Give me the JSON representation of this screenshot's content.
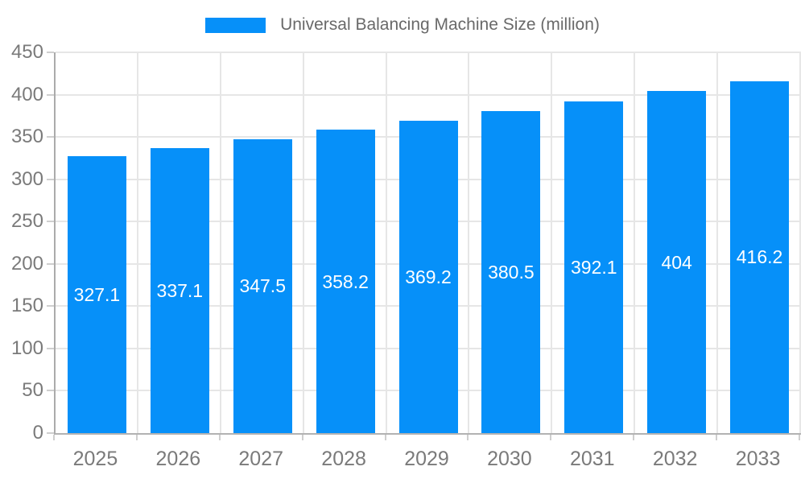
{
  "chart_data": {
    "type": "bar",
    "title": "",
    "legend": "Universal Balancing Machine Size (million)",
    "legend_position": "top",
    "categories": [
      "2025",
      "2026",
      "2027",
      "2028",
      "2029",
      "2030",
      "2031",
      "2032",
      "2033"
    ],
    "series": [
      {
        "name": "Universal Balancing Machine Size (million)",
        "values": [
          327.1,
          337.1,
          347.5,
          358.2,
          369.2,
          380.5,
          392.1,
          404,
          416.2
        ],
        "value_labels": [
          "327.1",
          "337.1",
          "347.5",
          "358.2",
          "369.2",
          "380.5",
          "392.1",
          "404",
          "416.2"
        ]
      }
    ],
    "xlabel": "",
    "ylabel": "",
    "ylim": [
      0,
      450
    ],
    "ytick_step": 50,
    "ytick_labels": [
      "0",
      "50",
      "100",
      "150",
      "200",
      "250",
      "300",
      "350",
      "400",
      "450"
    ],
    "grid": true,
    "colors": {
      "bar": "#0690f9",
      "value_label": "#ffffff",
      "grid_line": "#e6e6e6",
      "axis_line": "#ababab",
      "tick_label": "#7a7a7a",
      "legend_text": "#696969",
      "background": "#ffffff"
    }
  }
}
